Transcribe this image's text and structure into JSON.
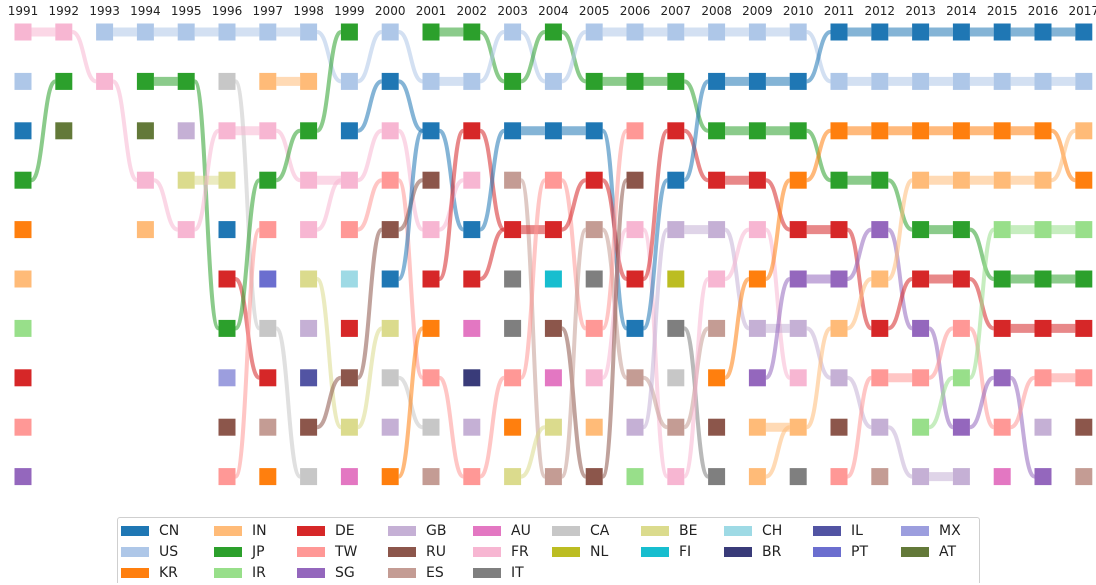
{
  "chart_data": {
    "type": "bump",
    "x": [
      1991,
      1992,
      1993,
      1994,
      1995,
      1996,
      1997,
      1998,
      1999,
      2000,
      2001,
      2002,
      2003,
      2004,
      2005,
      2006,
      2007,
      2008,
      2009,
      2010,
      2011,
      2012,
      2013,
      2014,
      2015,
      2016,
      2017
    ],
    "x_labels": [
      "1991",
      "1992",
      "1993",
      "1994",
      "1995",
      "1996",
      "1997",
      "1998",
      "1999",
      "2000",
      "2001",
      "2002",
      "2003",
      "2004",
      "2005",
      "2006",
      "2007",
      "2008",
      "2009",
      "2010",
      "2011",
      "2012",
      "2013",
      "2014",
      "2015",
      "2016",
      "2017"
    ],
    "rank_count": 10,
    "rankings": [
      [
        "FR",
        "US",
        "CN",
        "JP",
        "KR",
        "IN",
        "IR",
        "DE",
        "TW",
        "SG"
      ],
      [
        "FR",
        "JP",
        "AT"
      ],
      [
        "US",
        "FR"
      ],
      [
        "US",
        "JP",
        "AT",
        "FR",
        "IN"
      ],
      [
        "US",
        "JP",
        "GB",
        "BE",
        "FR"
      ],
      [
        "US",
        "CA",
        "FR",
        "BE",
        "CN",
        "DE",
        "JP",
        "MX",
        "RU",
        "TW"
      ],
      [
        "US",
        "IN",
        "FR",
        "JP",
        "TW",
        "PT",
        "CA",
        "DE",
        "ES",
        "KR"
      ],
      [
        "US",
        "IN",
        "JP",
        "FR",
        "FR",
        "BE",
        "GB",
        "IL",
        "RU",
        "CA"
      ],
      [
        "JP",
        "US",
        "CN",
        "FR",
        "TW",
        "CH",
        "DE",
        "RU",
        "BE",
        "AU"
      ],
      [
        "US",
        "CN",
        "FR",
        "TW",
        "RU",
        "CN",
        "BE",
        "CA",
        "GB",
        "KR"
      ],
      [
        "JP",
        "US",
        "CN",
        "RU",
        "FR",
        "DE",
        "KR",
        "TW",
        "CA",
        "ES"
      ],
      [
        "JP",
        "US",
        "DE",
        "FR",
        "CN",
        "DE",
        "AU",
        "BR",
        "GB",
        "TW"
      ],
      [
        "US",
        "JP",
        "CN",
        "ES",
        "DE",
        "IT",
        "IT",
        "TW",
        "KR",
        "BE"
      ],
      [
        "JP",
        "US",
        "CN",
        "TW",
        "DE",
        "FI",
        "RU",
        "AU",
        "BE",
        "ES"
      ],
      [
        "US",
        "JP",
        "CN",
        "DE",
        "ES",
        "IT",
        "TW",
        "FR",
        "IN",
        "RU"
      ],
      [
        "US",
        "JP",
        "TW",
        "RU",
        "FR",
        "DE",
        "CN",
        "ES",
        "GB",
        "IR"
      ],
      [
        "US",
        "JP",
        "DE",
        "CN",
        "GB",
        "NL",
        "IT",
        "CA",
        "ES",
        "FR"
      ],
      [
        "US",
        "CN",
        "JP",
        "DE",
        "GB",
        "FR",
        "ES",
        "KR",
        "RU",
        "IT"
      ],
      [
        "US",
        "CN",
        "JP",
        "DE",
        "FR",
        "KR",
        "GB",
        "SG",
        "IN",
        "IN"
      ],
      [
        "US",
        "CN",
        "JP",
        "KR",
        "DE",
        "SG",
        "GB",
        "FR",
        "IN",
        "IT"
      ],
      [
        "CN",
        "US",
        "KR",
        "JP",
        "DE",
        "SG",
        "IN",
        "GB",
        "RU",
        "TW"
      ],
      [
        "CN",
        "US",
        "KR",
        "JP",
        "SG",
        "IN",
        "DE",
        "TW",
        "GB",
        "ES"
      ],
      [
        "CN",
        "US",
        "KR",
        "IN",
        "JP",
        "DE",
        "SG",
        "TW",
        "IR",
        "GB"
      ],
      [
        "CN",
        "US",
        "KR",
        "IN",
        "JP",
        "DE",
        "TW",
        "IR",
        "SG",
        "GB"
      ],
      [
        "CN",
        "US",
        "KR",
        "IN",
        "IR",
        "JP",
        "DE",
        "SG",
        "TW",
        "AU"
      ],
      [
        "CN",
        "US",
        "KR",
        "IN",
        "IR",
        "JP",
        "DE",
        "TW",
        "GB",
        "SG"
      ],
      [
        "CN",
        "US",
        "IN",
        "KR",
        "IR",
        "JP",
        "DE",
        "TW",
        "RU",
        "ES"
      ]
    ],
    "legend": [
      "CN",
      "IN",
      "DE",
      "GB",
      "AU",
      "CA",
      "BE",
      "CH",
      "IL",
      "MX",
      "US",
      "JP",
      "TW",
      "RU",
      "FR",
      "NL",
      "FI",
      "BR",
      "PT",
      "AT",
      "KR",
      "IR",
      "SG",
      "ES",
      "IT"
    ],
    "colors": {
      "CN": "#1f77b4",
      "US": "#aec7e8",
      "KR": "#ff7f0e",
      "IN": "#ffbb78",
      "JP": "#2ca02c",
      "IR": "#98df8a",
      "DE": "#d62728",
      "TW": "#ff9896",
      "SG": "#9467bd",
      "GB": "#c5b0d5",
      "RU": "#8c564b",
      "ES": "#c49c94",
      "AU": "#e377c2",
      "FR": "#f7b6d2",
      "IT": "#7f7f7f",
      "CA": "#c7c7c7",
      "NL": "#bcbd22",
      "BE": "#dbdb8d",
      "FI": "#17becf",
      "CH": "#9edae5",
      "BR": "#393b79",
      "IL": "#5254a3",
      "PT": "#6b6ecf",
      "MX": "#9c9ede",
      "AT": "#637939"
    },
    "title": "",
    "xlabel": "",
    "ylabel": "",
    "grid": false,
    "legend_position": "bottom"
  }
}
